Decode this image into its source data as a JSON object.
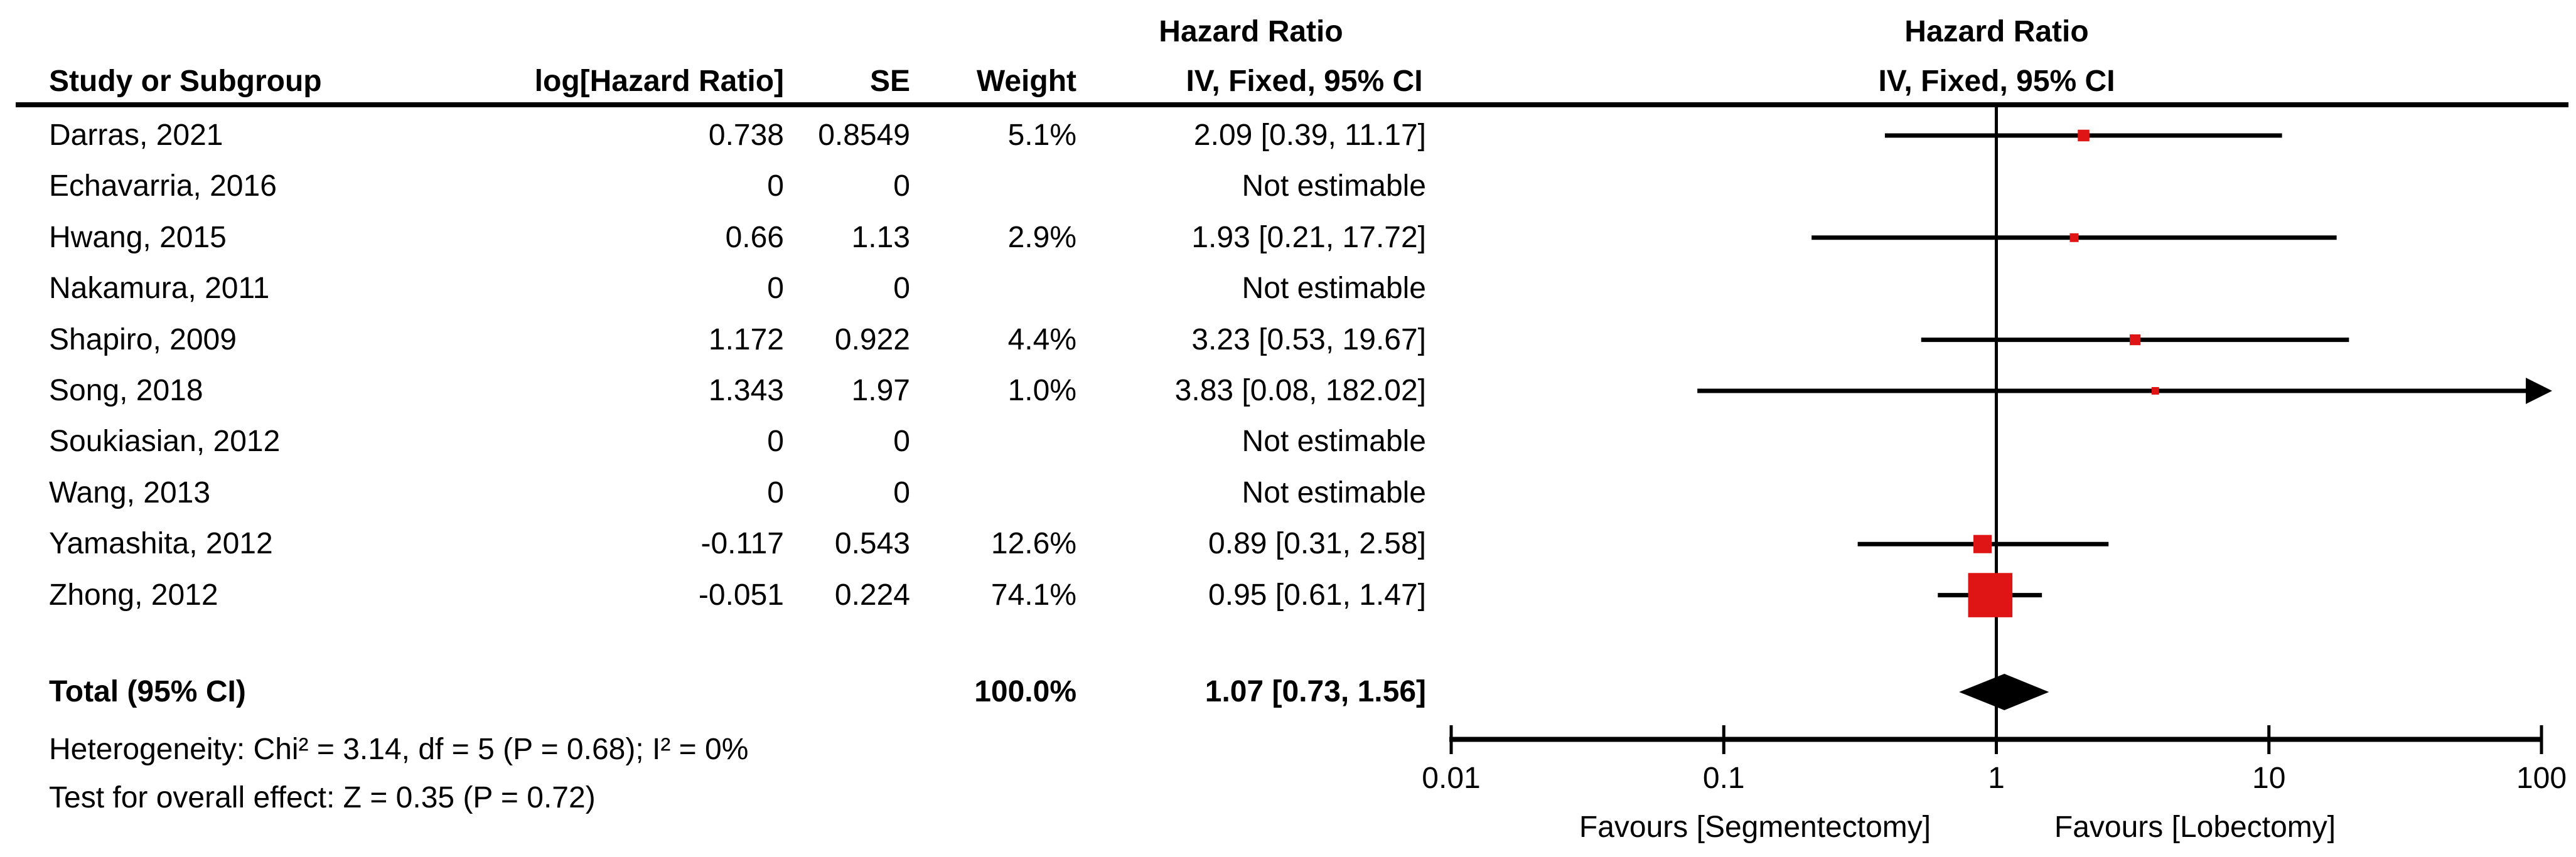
{
  "header": {
    "hazard_ratio": "Hazard Ratio",
    "method": "IV, Fixed, 95% CI",
    "study": "Study or Subgroup",
    "log_hr": "log[Hazard Ratio]",
    "se": "SE",
    "weight": "Weight"
  },
  "total_row": {
    "label": "Total (95% CI)",
    "weight": "100.0%",
    "ci_text": "1.07 [0.73, 1.56]"
  },
  "footnotes": {
    "heterogeneity": "Heterogeneity: Chi² = 3.14, df = 5 (P = 0.68); I² = 0%",
    "overall_effect": "Test for overall effect: Z = 0.35 (P = 0.72)"
  },
  "chart_data": {
    "type": "forest",
    "x_scale": "log10",
    "x_ticks": [
      0.01,
      0.1,
      1,
      10,
      100
    ],
    "x_tick_labels": [
      "0.01",
      "0.1",
      "1",
      "10",
      "100"
    ],
    "x_range": [
      0.01,
      100
    ],
    "null_line_value": 1,
    "favours_left": "Favours [Segmentectomy]",
    "favours_right": "Favours [Lobectomy]",
    "marker_color": "#df1414",
    "diamond_color": "#000000",
    "studies": [
      {
        "name": "Darras, 2021",
        "log_hr": "0.738",
        "se": "0.8549",
        "weight": "5.1%",
        "ci_text": "2.09 [0.39, 11.17]",
        "hr": 2.09,
        "ci_low": 0.39,
        "ci_high": 11.17,
        "weight_pct": 5.1
      },
      {
        "name": "Echavarria, 2016",
        "log_hr": "0",
        "se": "0",
        "weight": "",
        "ci_text": "Not estimable",
        "hr": null,
        "ci_low": null,
        "ci_high": null,
        "weight_pct": 0
      },
      {
        "name": "Hwang, 2015",
        "log_hr": "0.66",
        "se": "1.13",
        "weight": "2.9%",
        "ci_text": "1.93 [0.21, 17.72]",
        "hr": 1.93,
        "ci_low": 0.21,
        "ci_high": 17.72,
        "weight_pct": 2.9
      },
      {
        "name": "Nakamura, 2011",
        "log_hr": "0",
        "se": "0",
        "weight": "",
        "ci_text": "Not estimable",
        "hr": null,
        "ci_low": null,
        "ci_high": null,
        "weight_pct": 0
      },
      {
        "name": "Shapiro, 2009",
        "log_hr": "1.172",
        "se": "0.922",
        "weight": "4.4%",
        "ci_text": "3.23 [0.53, 19.67]",
        "hr": 3.23,
        "ci_low": 0.53,
        "ci_high": 19.67,
        "weight_pct": 4.4
      },
      {
        "name": "Song, 2018",
        "log_hr": "1.343",
        "se": "1.97",
        "weight": "1.0%",
        "ci_text": "3.83 [0.08, 182.02]",
        "hr": 3.83,
        "ci_low": 0.08,
        "ci_high": 182.02,
        "weight_pct": 1.0
      },
      {
        "name": "Soukiasian, 2012",
        "log_hr": "0",
        "se": "0",
        "weight": "",
        "ci_text": "Not estimable",
        "hr": null,
        "ci_low": null,
        "ci_high": null,
        "weight_pct": 0
      },
      {
        "name": "Wang, 2013",
        "log_hr": "0",
        "se": "0",
        "weight": "",
        "ci_text": "Not estimable",
        "hr": null,
        "ci_low": null,
        "ci_high": null,
        "weight_pct": 0
      },
      {
        "name": "Yamashita, 2012",
        "log_hr": "-0.117",
        "se": "0.543",
        "weight": "12.6%",
        "ci_text": "0.89 [0.31, 2.58]",
        "hr": 0.89,
        "ci_low": 0.31,
        "ci_high": 2.58,
        "weight_pct": 12.6
      },
      {
        "name": "Zhong, 2012",
        "log_hr": "-0.051",
        "se": "0.224",
        "weight": "74.1%",
        "ci_text": "0.95 [0.61, 1.47]",
        "hr": 0.95,
        "ci_low": 0.61,
        "ci_high": 1.47,
        "weight_pct": 74.1
      }
    ],
    "total": {
      "hr": 1.07,
      "ci_low": 0.73,
      "ci_high": 1.56
    }
  }
}
